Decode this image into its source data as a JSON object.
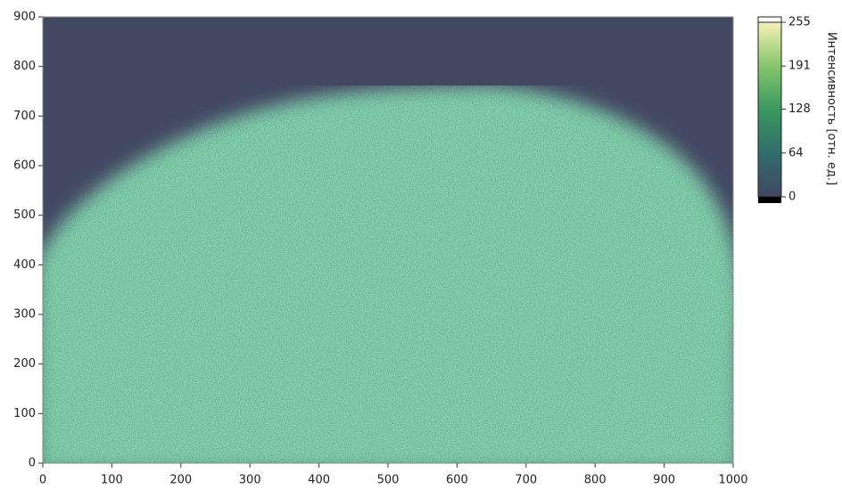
{
  "chart_data": {
    "type": "heatmap",
    "xlim": [
      0,
      1000
    ],
    "xticks": [
      0,
      100,
      200,
      300,
      400,
      500,
      600,
      700,
      800,
      900,
      1000
    ],
    "ylim": [
      0,
      900
    ],
    "yticks": [
      0,
      100,
      200,
      300,
      400,
      500,
      600,
      700,
      800,
      900
    ],
    "colorbar": {
      "label": "Интенсивность [отн. ед.]",
      "lim": [
        0,
        255
      ],
      "ticks": [
        0,
        64,
        128,
        191,
        255
      ],
      "colors": [
        "#424862",
        "#2f6d6b",
        "#3a985f",
        "#86c66b",
        "#f5f2b4"
      ]
    }
  }
}
